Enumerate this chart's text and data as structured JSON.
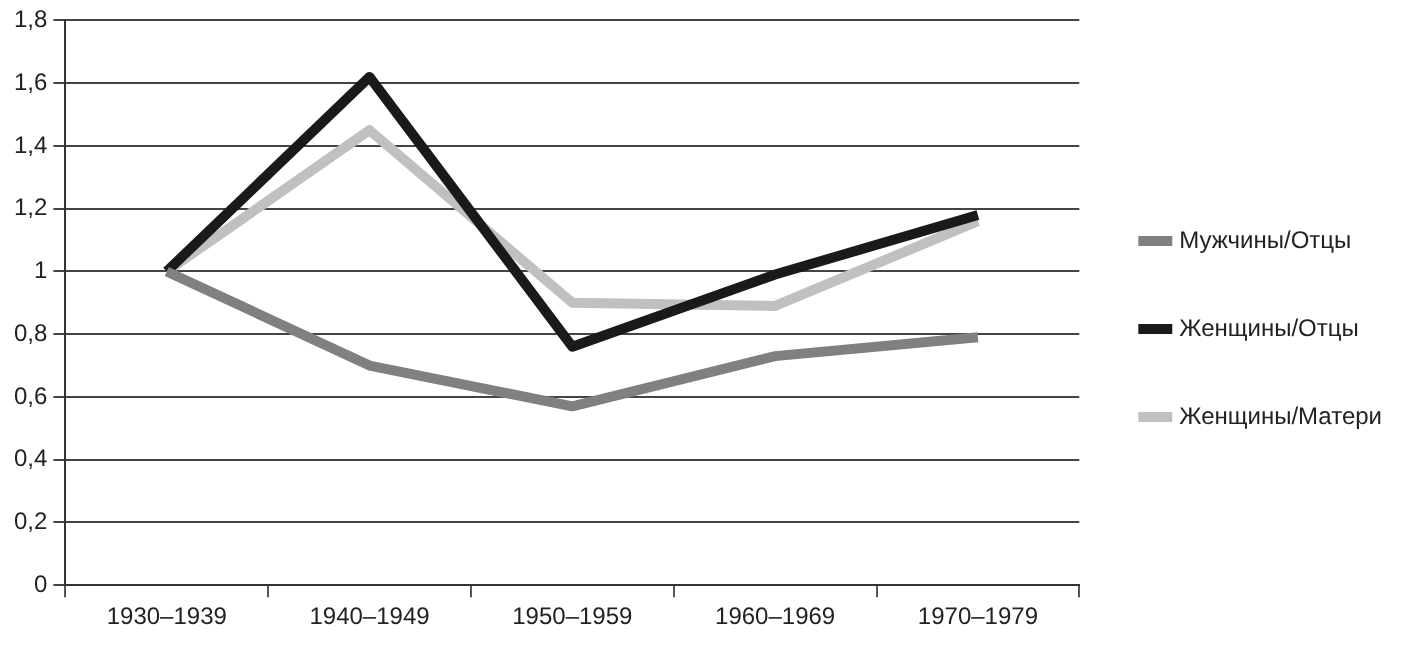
{
  "chart_data": {
    "type": "line",
    "categories": [
      "1930–1939",
      "1940–1949",
      "1950–1959",
      "1960–1969",
      "1970–1979"
    ],
    "series": [
      {
        "name": "Мужчины/Отцы",
        "color": "#808080",
        "values": [
          1.0,
          0.7,
          0.57,
          0.73,
          0.79
        ]
      },
      {
        "name": "Женщины/Отцы",
        "color": "#1a1a1a",
        "values": [
          1.0,
          1.62,
          0.76,
          0.99,
          1.18
        ]
      },
      {
        "name": "Женщины/Матери",
        "color": "#c0c0c0",
        "values": [
          1.0,
          1.45,
          0.9,
          0.89,
          1.16
        ]
      }
    ],
    "ylim": [
      0,
      1.8
    ],
    "yticks": [
      0,
      {
        "value": 0.2,
        "label": "0,2"
      },
      {
        "value": 0.4,
        "label": "0,4"
      },
      {
        "value": 0.6,
        "label": "0,6"
      },
      {
        "value": 0.8,
        "label": "0,8"
      },
      1,
      {
        "value": 1.2,
        "label": "1,2"
      },
      {
        "value": 1.4,
        "label": "1,4"
      },
      {
        "value": 1.6,
        "label": "1,6"
      },
      {
        "value": 1.8,
        "label": "1,8"
      }
    ],
    "grid": "y",
    "legend": "right",
    "marker": "none",
    "line_style": "solid"
  }
}
